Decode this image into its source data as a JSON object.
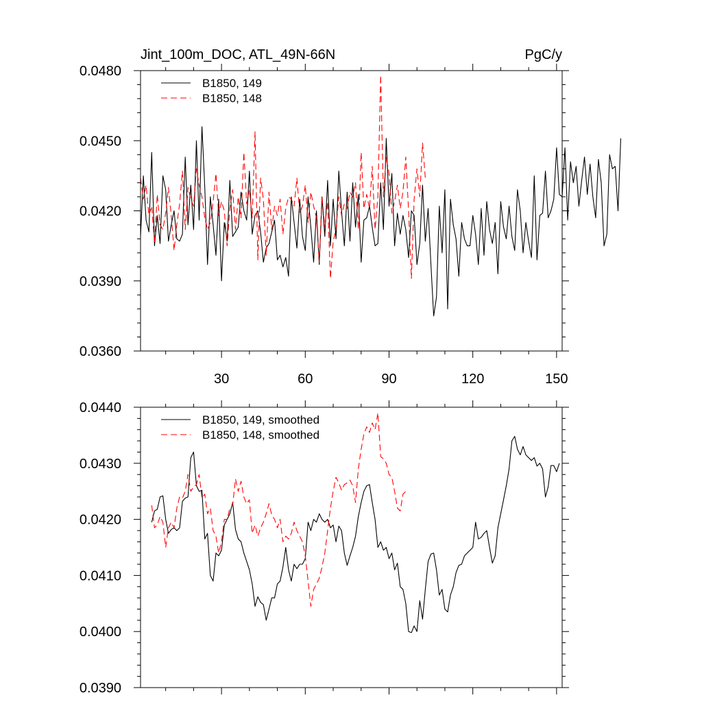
{
  "chart_data": [
    {
      "type": "line",
      "title": "Jint_100m_DOC, ATL_49N-66N",
      "units": "PgC/y",
      "xlim": [
        1,
        152
      ],
      "ylim": [
        0.036,
        0.048
      ],
      "y_ticks": [
        "0.0360",
        "0.0390",
        "0.0420",
        "0.0450",
        "0.0480"
      ],
      "x_ticks": [
        "30",
        "60",
        "90",
        "120",
        "150"
      ],
      "series": [
        {
          "name": "B1850, 149",
          "color": "#000000",
          "dash": "solid",
          "x_start": 1,
          "values": [
            0.0409,
            0.0435,
            0.0416,
            0.0411,
            0.0445,
            0.0405,
            0.0418,
            0.0406,
            0.0435,
            0.0429,
            0.0407,
            0.0414,
            0.042,
            0.0408,
            0.0407,
            0.041,
            0.0443,
            0.0414,
            0.0431,
            0.0412,
            0.045,
            0.0416,
            0.0456,
            0.043,
            0.0397,
            0.0426,
            0.0414,
            0.0401,
            0.0425,
            0.039,
            0.0415,
            0.0407,
            0.0433,
            0.0409,
            0.0411,
            0.0413,
            0.0428,
            0.042,
            0.0416,
            0.0437,
            0.041,
            0.0418,
            0.042,
            0.0411,
            0.0398,
            0.0404,
            0.0406,
            0.0411,
            0.0416,
            0.0399,
            0.0401,
            0.0396,
            0.04,
            0.0392,
            0.0426,
            0.0415,
            0.0404,
            0.0425,
            0.0409,
            0.0403,
            0.0426,
            0.0413,
            0.0398,
            0.042,
            0.0397,
            0.0426,
            0.0409,
            0.0433,
            0.0405,
            0.0425,
            0.0408,
            0.0437,
            0.042,
            0.0405,
            0.0428,
            0.0407,
            0.0432,
            0.0413,
            0.0427,
            0.0398,
            0.0416,
            0.0417,
            0.0422,
            0.0413,
            0.0405,
            0.0406,
            0.0432,
            0.0412,
            0.0451,
            0.0422,
            0.0436,
            0.0405,
            0.0419,
            0.041,
            0.0418,
            0.0412,
            0.04,
            0.042,
            0.0418,
            0.0397,
            0.0406,
            0.0431,
            0.0407,
            0.0421,
            0.0397,
            0.0375,
            0.0383,
            0.0422,
            0.0402,
            0.0429,
            0.0378,
            0.0425,
            0.0414,
            0.0408,
            0.0392,
            0.0415,
            0.0408,
            0.0405,
            0.0405,
            0.0418,
            0.041,
            0.0397,
            0.0421,
            0.0401,
            0.0424,
            0.0412,
            0.0406,
            0.0415,
            0.0393,
            0.0424,
            0.0413,
            0.0408,
            0.0422,
            0.0409,
            0.0403,
            0.0429,
            0.042,
            0.0402,
            0.0415,
            0.0407,
            0.04,
            0.0435,
            0.0399,
            0.0418,
            0.0419,
            0.0437,
            0.0417,
            0.042,
            0.0425,
            0.0447,
            0.0427,
            0.0426,
            0.0447,
            0.0416,
            0.0441,
            0.0432,
            0.0439,
            0.0422,
            0.0433,
            0.0443,
            0.0427,
            0.044,
            0.0426,
            0.0417,
            0.0442,
            0.0432,
            0.0405,
            0.041,
            0.0444,
            0.0438,
            0.0439,
            0.042,
            0.0451
          ]
        },
        {
          "name": "B1850, 148",
          "color": "#ff0000",
          "dash": "dashed",
          "x_start": 1,
          "values": [
            0.0434,
            0.0425,
            0.0431,
            0.0418,
            0.0422,
            0.0406,
            0.0427,
            0.0414,
            0.0412,
            0.0419,
            0.043,
            0.0418,
            0.0403,
            0.0414,
            0.0423,
            0.0437,
            0.0412,
            0.043,
            0.0425,
            0.0422,
            0.0438,
            0.0431,
            0.0426,
            0.0417,
            0.0412,
            0.0415,
            0.0424,
            0.0436,
            0.0418,
            0.0424,
            0.042,
            0.0405,
            0.0421,
            0.0429,
            0.0412,
            0.0426,
            0.0417,
            0.0445,
            0.0423,
            0.0429,
            0.0417,
            0.0454,
            0.0399,
            0.0434,
            0.0425,
            0.0401,
            0.0428,
            0.0412,
            0.0422,
            0.0418,
            0.0425,
            0.041,
            0.0421,
            0.0426,
            0.0425,
            0.0422,
            0.0434,
            0.0419,
            0.0422,
            0.0431,
            0.0415,
            0.0428,
            0.0422,
            0.0417,
            0.0398,
            0.0426,
            0.0413,
            0.0424,
            0.0391,
            0.0407,
            0.0412,
            0.0426,
            0.0418,
            0.0423,
            0.0421,
            0.0428,
            0.0426,
            0.0432,
            0.0412,
            0.0445,
            0.0421,
            0.0427,
            0.0421,
            0.0439,
            0.0412,
            0.0426,
            0.0478,
            0.0426,
            0.0443,
            0.0436,
            0.0419,
            0.0424,
            0.0431,
            0.0421,
            0.0428,
            0.0443,
            0.042,
            0.0391,
            0.0425,
            0.0438,
            0.0426,
            0.0449,
            0.0434
          ]
        }
      ]
    },
    {
      "type": "line",
      "xlim": [
        1,
        152
      ],
      "ylim": [
        0.039,
        0.044
      ],
      "y_ticks": [
        "0.0390",
        "0.0400",
        "0.0410",
        "0.0420",
        "0.0430",
        "0.0440"
      ],
      "series": [
        {
          "name": "B1850, 149, smoothed",
          "color": "#000000",
          "dash": "solid",
          "x_start": 5,
          "values": [
            0.04195,
            0.04215,
            0.04218,
            0.0424,
            0.04242,
            0.042,
            0.04175,
            0.04182,
            0.04185,
            0.0418,
            0.04185,
            0.04232,
            0.04238,
            0.0424,
            0.0431,
            0.0432,
            0.0426,
            0.0425,
            0.04252,
            0.04165,
            0.04175,
            0.041,
            0.0409,
            0.0414,
            0.04135,
            0.04145,
            0.0419,
            0.042,
            0.0421,
            0.0423,
            0.04182,
            0.04165,
            0.0416,
            0.0414,
            0.04125,
            0.0411,
            0.04085,
            0.04045,
            0.04062,
            0.04052,
            0.04048,
            0.0402,
            0.0404,
            0.0406,
            0.0406,
            0.04085,
            0.0409,
            0.04115,
            0.0415,
            0.0411,
            0.0409,
            0.0412,
            0.04112,
            0.0412,
            0.0412,
            0.0413,
            0.04195,
            0.0418,
            0.042,
            0.04195,
            0.0421,
            0.042,
            0.04195,
            0.042,
            0.04185,
            0.0419,
            0.0416,
            0.04188,
            0.0418,
            0.0414,
            0.04118,
            0.04135,
            0.0415,
            0.0417,
            0.04205,
            0.0423,
            0.0425,
            0.0426,
            0.04262,
            0.0423,
            0.042,
            0.0415,
            0.0416,
            0.04145,
            0.0415,
            0.0413,
            0.0414,
            0.0411,
            0.04122,
            0.0408,
            0.04075,
            0.0405,
            0.04,
            0.03998,
            0.0401,
            0.04,
            0.04055,
            0.04022,
            0.04075,
            0.04125,
            0.04138,
            0.0414,
            0.0411,
            0.04065,
            0.04075,
            0.0404,
            0.04035,
            0.04065,
            0.0408,
            0.04105,
            0.04118,
            0.0412,
            0.04135,
            0.0414,
            0.04145,
            0.0415,
            0.04195,
            0.04165,
            0.04168,
            0.04175,
            0.0418,
            0.0415,
            0.04122,
            0.04135,
            0.04185,
            0.0421,
            0.04235,
            0.0426,
            0.0429,
            0.0434,
            0.04348,
            0.04325,
            0.04315,
            0.0433,
            0.04315,
            0.0431,
            0.04305,
            0.0431,
            0.04295,
            0.043,
            0.0429,
            0.0424,
            0.04258,
            0.04296,
            0.04296,
            0.04285,
            0.043
          ]
        },
        {
          "name": "B1850, 148, smoothed",
          "color": "#ff0000",
          "dash": "dashed",
          "x_start": 5,
          "values": [
            0.04225,
            0.04185,
            0.0419,
            0.04205,
            0.04195,
            0.0415,
            0.04185,
            0.04195,
            0.04185,
            0.0422,
            0.0424,
            0.04238,
            0.0425,
            0.0428,
            0.0425,
            0.04258,
            0.04262,
            0.0428,
            0.04238,
            0.04245,
            0.0421,
            0.0422,
            0.0418,
            0.0417,
            0.0414,
            0.0416,
            0.042,
            0.042,
            0.0422,
            0.04225,
            0.04272,
            0.0425,
            0.04268,
            0.0424,
            0.04228,
            0.04235,
            0.04175,
            0.0419,
            0.0417,
            0.04185,
            0.04195,
            0.0421,
            0.04228,
            0.04208,
            0.042,
            0.04185,
            0.042,
            0.0416,
            0.0417,
            0.04165,
            0.04175,
            0.04195,
            0.0418,
            0.0417,
            0.0416,
            0.04135,
            0.0409,
            0.04045,
            0.04075,
            0.04085,
            0.04095,
            0.04115,
            0.0414,
            0.0418,
            0.0422,
            0.0425,
            0.04275,
            0.04265,
            0.04252,
            0.04262,
            0.04265,
            0.0427,
            0.0426,
            0.0423,
            0.0429,
            0.04325,
            0.04352,
            0.04365,
            0.04355,
            0.04372,
            0.0436,
            0.0439,
            0.04312,
            0.04308,
            0.043,
            0.0428,
            0.04275,
            0.0425,
            0.0422,
            0.04215,
            0.04245,
            0.0425
          ]
        }
      ]
    }
  ]
}
